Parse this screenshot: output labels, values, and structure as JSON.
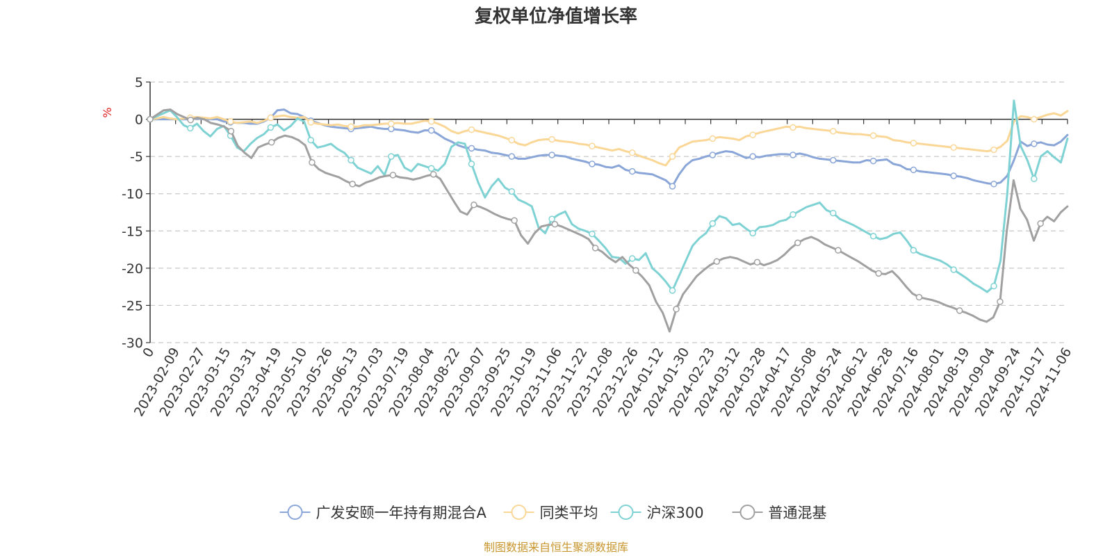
{
  "chart_data": {
    "type": "line",
    "title": "复权单位净值增长率",
    "ylabel": "%",
    "ylim": [
      -30,
      5
    ],
    "yticks": [
      5,
      0,
      -5,
      -10,
      -15,
      -20,
      -25,
      -30
    ],
    "x_ticks": [
      "0",
      "2023-02-09",
      "2023-02-27",
      "2023-03-15",
      "2023-03-31",
      "2023-04-19",
      "2023-05-10",
      "2023-05-26",
      "2023-06-13",
      "2023-07-03",
      "2023-07-19",
      "2023-08-04",
      "2023-08-22",
      "2023-09-07",
      "2023-09-25",
      "2023-10-19",
      "2023-11-06",
      "2023-11-22",
      "2023-12-08",
      "2023-12-26",
      "2024-01-12",
      "2024-01-30",
      "2024-02-23",
      "2024-03-12",
      "2024-03-28",
      "2024-04-17",
      "2024-05-08",
      "2024-05-24",
      "2024-06-12",
      "2024-06-28",
      "2024-07-16",
      "2024-08-01",
      "2024-08-19",
      "2024-09-04",
      "2024-09-24",
      "2024-10-17",
      "2024-11-06"
    ],
    "grid": true,
    "legend": "bottom-center",
    "series": [
      {
        "name": "广发安颐一年持有期混合A",
        "color": "#8aa6d8",
        "values": [
          0,
          0,
          0,
          0,
          0,
          0,
          0,
          0.1,
          0,
          0,
          0,
          -0.3,
          -0.4,
          -0.5,
          -0.5,
          -0.6,
          -0.6,
          -0.3,
          0.2,
          1.2,
          1.3,
          0.8,
          0.7,
          0.3,
          -0.2,
          -0.5,
          -0.8,
          -1,
          -1.1,
          -1.2,
          -1.3,
          -1.2,
          -1.1,
          -1,
          -1.2,
          -1.3,
          -1.3,
          -1.4,
          -1.5,
          -1.7,
          -1.8,
          -1.5,
          -1.5,
          -2,
          -2.6,
          -3,
          -3.5,
          -3.8,
          -3.9,
          -4.1,
          -4.2,
          -4.5,
          -4.6,
          -4.8,
          -5,
          -5.3,
          -5.3,
          -5.1,
          -4.9,
          -4.8,
          -4.8,
          -4.9,
          -5,
          -5.3,
          -5.5,
          -5.7,
          -6,
          -6.1,
          -6.4,
          -6.5,
          -6.2,
          -6.8,
          -7,
          -7.2,
          -7.3,
          -7.4,
          -7.8,
          -8.2,
          -9,
          -7.4,
          -6.2,
          -5.5,
          -5.3,
          -5,
          -4.8,
          -4.5,
          -4.3,
          -4.4,
          -4.8,
          -5.2,
          -5,
          -5.1,
          -4.9,
          -4.8,
          -4.7,
          -4.7,
          -4.8,
          -4.6,
          -4.8,
          -5.1,
          -5.3,
          -5.4,
          -5.5,
          -5.6,
          -5.7,
          -5.8,
          -5.8,
          -5.5,
          -5.6,
          -5.5,
          -5.4,
          -6,
          -6.2,
          -6.7,
          -6.8,
          -7,
          -7.1,
          -7.2,
          -7.3,
          -7.4,
          -7.6,
          -7.7,
          -7.9,
          -8.2,
          -8.4,
          -8.6,
          -8.7,
          -8.5,
          -7.6,
          -5.5,
          -3,
          -3.6,
          -3.3,
          -3.1,
          -3.4,
          -3.5,
          -3,
          -2.1
        ]
      },
      {
        "name": "同类平均",
        "color": "#fad797",
        "values": [
          0,
          0.1,
          0.3,
          0.1,
          0,
          0.1,
          0.2,
          0.3,
          0.2,
          0.1,
          0.3,
          0,
          -0.3,
          -0.5,
          -0.4,
          -0.3,
          -0.5,
          -0.2,
          0.2,
          0.4,
          0.5,
          0.3,
          0.2,
          0.3,
          -0.4,
          -0.6,
          -0.7,
          -0.8,
          -0.7,
          -0.9,
          -1,
          -1,
          -0.8,
          -0.8,
          -0.7,
          -0.6,
          -0.6,
          -0.5,
          -0.6,
          -0.6,
          -0.4,
          -0.2,
          -0.3,
          -0.6,
          -1,
          -1.6,
          -1.9,
          -1.6,
          -1.4,
          -1.6,
          -1.8,
          -2,
          -2.2,
          -2.5,
          -2.8,
          -3.3,
          -3.5,
          -3.1,
          -2.8,
          -2.7,
          -2.7,
          -2.9,
          -3,
          -3.1,
          -3.3,
          -3.4,
          -3.6,
          -3.8,
          -4,
          -4.2,
          -4,
          -4.3,
          -4.5,
          -4.9,
          -5.2,
          -5.5,
          -5.9,
          -6.2,
          -5,
          -3.8,
          -3.4,
          -3,
          -2.9,
          -2.8,
          -2.6,
          -2.4,
          -2.5,
          -2.6,
          -2.8,
          -2.3,
          -2.1,
          -1.8,
          -1.6,
          -1.4,
          -1.2,
          -1,
          -1.1,
          -1,
          -1.2,
          -1.3,
          -1.4,
          -1.5,
          -1.6,
          -1.8,
          -1.9,
          -2,
          -2,
          -2.1,
          -2.2,
          -2.3,
          -2.4,
          -2.8,
          -2.9,
          -3.1,
          -3.2,
          -3.3,
          -3.4,
          -3.5,
          -3.6,
          -3.7,
          -3.8,
          -3.9,
          -4,
          -4.1,
          -4.2,
          -4.3,
          -4.1,
          -3.7,
          -2.9,
          -0.3,
          0.4,
          0.3,
          0,
          0.3,
          0.6,
          0.8,
          0.5,
          1.1
        ]
      },
      {
        "name": "沪深300",
        "color": "#7fd2d3",
        "values": [
          0,
          0.4,
          0.8,
          1.2,
          0.3,
          -0.8,
          -1.2,
          -0.6,
          -1.6,
          -2.3,
          -1.3,
          -0.9,
          -2.2,
          -3.8,
          -4.3,
          -3.3,
          -2.5,
          -2,
          -1.1,
          -0.7,
          -1.5,
          -0.9,
          0.1,
          -0.3,
          -2.8,
          -3.8,
          -3.6,
          -3.3,
          -4,
          -4.5,
          -5.5,
          -6.5,
          -6.9,
          -7.3,
          -6.3,
          -7.5,
          -5,
          -4.8,
          -6.5,
          -7,
          -6,
          -6.3,
          -6.6,
          -6.9,
          -6,
          -3.7,
          -3.1,
          -3.3,
          -6,
          -8.5,
          -10.5,
          -9,
          -8,
          -9.2,
          -9.7,
          -10.8,
          -11.2,
          -11.7,
          -14.5,
          -15.3,
          -13.4,
          -12.8,
          -12.4,
          -14.1,
          -14.7,
          -15,
          -15.4,
          -16.3,
          -17.3,
          -18.5,
          -18.6,
          -19.4,
          -18.7,
          -18.9,
          -18,
          -20,
          -20.8,
          -21.8,
          -23,
          -21,
          -19,
          -17,
          -16,
          -15.3,
          -14,
          -13,
          -13.3,
          -14.2,
          -14,
          -14.7,
          -15.3,
          -14.5,
          -14.4,
          -14.2,
          -13.7,
          -13.5,
          -12.8,
          -12.3,
          -11.8,
          -11.5,
          -11.2,
          -12.2,
          -12.6,
          -13.4,
          -13.8,
          -14.2,
          -14.7,
          -15.2,
          -15.7,
          -16.1,
          -15.9,
          -15.4,
          -15.2,
          -16.3,
          -17.6,
          -18.1,
          -18.4,
          -18.7,
          -19,
          -19.5,
          -20.2,
          -20.8,
          -21.4,
          -22.1,
          -22.6,
          -23.2,
          -22.4,
          -19,
          -10,
          2.5,
          -3.6,
          -5.5,
          -8,
          -5,
          -4.3,
          -5.1,
          -5.8,
          -2.6
        ]
      },
      {
        "name": "普通混基",
        "color": "#a0a0a0",
        "values": [
          0,
          0.6,
          1.2,
          1.3,
          0.7,
          0.3,
          -0.1,
          0.2,
          0,
          -0.5,
          -0.7,
          -1,
          -1.6,
          -3.6,
          -4.5,
          -5.2,
          -3.8,
          -3.4,
          -3.1,
          -2.5,
          -2.2,
          -2.4,
          -2.8,
          -3.5,
          -5.8,
          -6.7,
          -7.2,
          -7.5,
          -7.8,
          -8.3,
          -8.7,
          -9,
          -8.5,
          -8.2,
          -7.8,
          -7.6,
          -7.5,
          -7.8,
          -7.9,
          -8.1,
          -7.9,
          -7.6,
          -7.4,
          -8,
          -9.5,
          -11,
          -12.4,
          -12.8,
          -11.5,
          -11.8,
          -12.2,
          -12.7,
          -13.1,
          -13.4,
          -13.6,
          -15.6,
          -16.7,
          -15.3,
          -14.4,
          -14.2,
          -14.1,
          -14.4,
          -14.8,
          -15.2,
          -15.6,
          -16.1,
          -17.3,
          -17.8,
          -18.6,
          -19.2,
          -18.5,
          -19.5,
          -20.3,
          -21.2,
          -22.3,
          -24.5,
          -26,
          -28.5,
          -25.5,
          -23.5,
          -22.3,
          -21.1,
          -20.3,
          -19.6,
          -19.1,
          -18.7,
          -18.5,
          -18.7,
          -19.1,
          -19.5,
          -19.2,
          -19.6,
          -19.3,
          -18.9,
          -18.2,
          -17.3,
          -16.6,
          -16.1,
          -15.8,
          -16.2,
          -16.8,
          -17.2,
          -17.6,
          -18.1,
          -18.6,
          -19.1,
          -19.7,
          -20.3,
          -20.7,
          -20.8,
          -20.4,
          -21.3,
          -22.4,
          -23.4,
          -23.9,
          -24.1,
          -24.3,
          -24.6,
          -25,
          -25.3,
          -25.7,
          -26,
          -26.4,
          -26.9,
          -27.2,
          -26.6,
          -24.5,
          -15,
          -8.2,
          -12,
          -13.5,
          -16.3,
          -14,
          -13.1,
          -13.7,
          -12.5,
          -11.7
        ]
      }
    ]
  },
  "source_note": "制图数据来自恒生聚源数据库"
}
